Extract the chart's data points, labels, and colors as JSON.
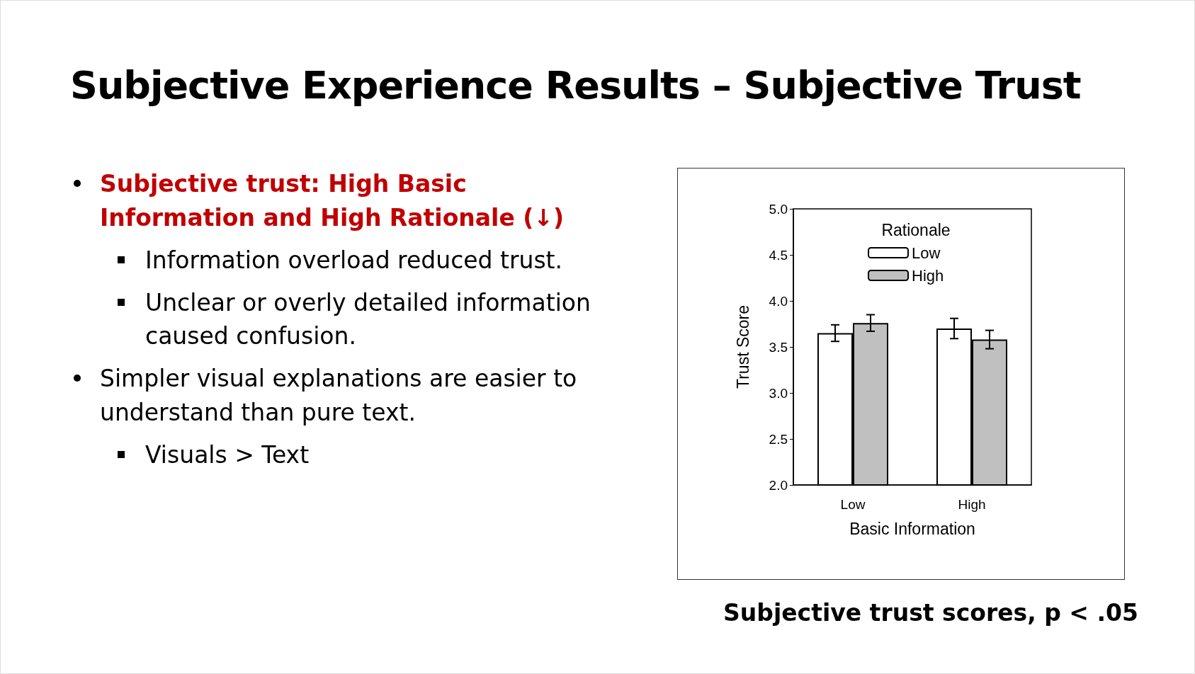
{
  "chart_data": {
    "type": "bar",
    "title": "Subjective Experience Results – Subjective Trust",
    "annotations": [
      "Subjective trust: High Basic Information and High Rationale (↓)",
      "Information overload reduced trust.",
      "Unclear or overly detailed information caused confusion.",
      "Simpler visual explanations are easier to understand than pure text.",
      "Visuals > Text",
      "Subjective trust scores, p < .05"
    ],
    "xlabel": "Basic Information",
    "ylabel": "Trust Score",
    "legend_title": "Rationale",
    "categories": [
      "Low",
      "High"
    ],
    "series": [
      {
        "name": "Low",
        "color": "#ffffff",
        "values": [
          3.65,
          3.7
        ],
        "errors": [
          0.09,
          0.11
        ]
      },
      {
        "name": "High",
        "color": "#c0c0c0",
        "values": [
          3.76,
          3.58
        ],
        "errors": [
          0.09,
          0.1
        ]
      }
    ],
    "ylim": [
      2,
      5
    ],
    "yticks": [
      {
        "value": 2,
        "label": "2.0"
      },
      {
        "value": 2.5,
        "label": "2.5"
      },
      {
        "value": 3,
        "label": "3.0"
      },
      {
        "value": 3.5,
        "label": "3.5"
      },
      {
        "value": 4,
        "label": "4.0"
      },
      {
        "value": 4.5,
        "label": "4.5"
      },
      {
        "value": 5,
        "label": "5.0"
      }
    ],
    "legend": "top",
    "grid": false
  }
}
